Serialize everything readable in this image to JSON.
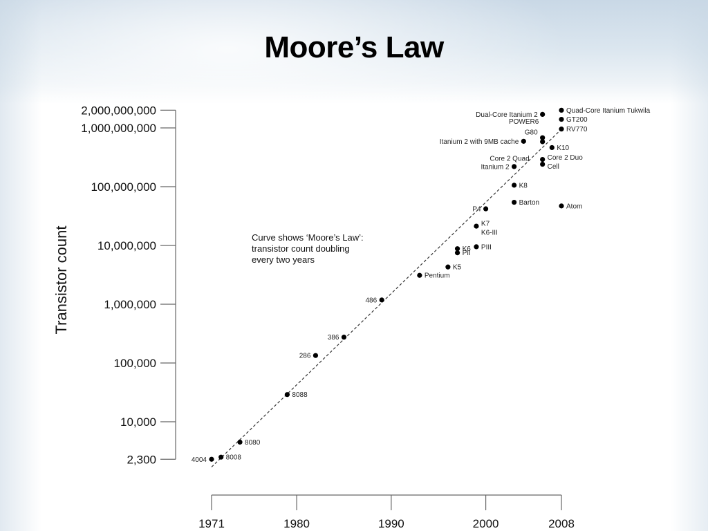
{
  "slide": {
    "title": "Moore’s Law"
  },
  "chart_data": {
    "type": "scatter",
    "ylabel": "Transistor count",
    "xlabel": "",
    "y_scale": "log",
    "x_ticks": [
      1971,
      1980,
      1990,
      2000,
      2008
    ],
    "x_tick_labels": [
      "1971",
      "1980",
      "1990",
      "2000",
      "2008"
    ],
    "y_ticks": [
      2300,
      10000,
      100000,
      1000000,
      10000000,
      100000000,
      1000000000,
      2000000000
    ],
    "y_tick_labels": [
      "2,300",
      "10,000",
      "100,000",
      "1,000,000",
      "10,000,000",
      "100,000,000",
      "1,000,000,000",
      "2,000,000,000"
    ],
    "xlim": [
      1971,
      2008
    ],
    "ylim": [
      2300,
      2000000000
    ],
    "annotation": [
      "Curve shows ‘Moore’s Law’:",
      "transistor count doubling",
      "every two years"
    ],
    "trend_line": {
      "description": "doubling every two years",
      "from": [
        1971,
        1700
      ],
      "to": [
        2008,
        950000000
      ]
    },
    "points": [
      {
        "label": "4004",
        "x": 1971,
        "y": 2300,
        "side": "left"
      },
      {
        "label": "8008",
        "x": 1972,
        "y": 2500,
        "side": "right"
      },
      {
        "label": "8080",
        "x": 1974,
        "y": 4500,
        "side": "right"
      },
      {
        "label": "8088",
        "x": 1979,
        "y": 29000,
        "side": "right"
      },
      {
        "label": "286",
        "x": 1982,
        "y": 134000,
        "side": "left"
      },
      {
        "label": "386",
        "x": 1985,
        "y": 275000,
        "side": "left"
      },
      {
        "label": "486",
        "x": 1989,
        "y": 1180000,
        "side": "left"
      },
      {
        "label": "Pentium",
        "x": 1993,
        "y": 3100000,
        "side": "right"
      },
      {
        "label": "K5",
        "x": 1996,
        "y": 4300000,
        "side": "right"
      },
      {
        "label": "K6",
        "x": 1997,
        "y": 8800000,
        "side": "right"
      },
      {
        "label": "PII",
        "x": 1997,
        "y": 7500000,
        "side": "right"
      },
      {
        "label": "PIII",
        "x": 1999,
        "y": 9500000,
        "side": "right"
      },
      {
        "label": "K6-III",
        "x": 1999,
        "y": 21300000,
        "side": "right",
        "dy": 9
      },
      {
        "label": "K7",
        "x": 1999,
        "y": 22000000,
        "side": "right",
        "dy": -3,
        "no_dot": true
      },
      {
        "label": "P4",
        "x": 2000,
        "y": 42000000,
        "side": "left"
      },
      {
        "label": "Barton",
        "x": 2003,
        "y": 54300000,
        "side": "right"
      },
      {
        "label": "Atom",
        "x": 2008,
        "y": 47000000,
        "side": "right"
      },
      {
        "label": "K8",
        "x": 2003,
        "y": 105900000,
        "side": "right"
      },
      {
        "label": "Itanium 2",
        "x": 2003,
        "y": 220000000,
        "side": "left"
      },
      {
        "label": "Cell",
        "x": 2006,
        "y": 241000000,
        "side": "right",
        "dy": 3
      },
      {
        "label": "Core 2 Duo",
        "x": 2006,
        "y": 291000000,
        "side": "right",
        "dy": -3
      },
      {
        "label": "Core 2 Quad",
        "x": 2006,
        "y": 582000000,
        "side": "left",
        "dx": -12,
        "dy": 24
      },
      {
        "label": "K10",
        "x": 2007,
        "y": 463000000,
        "side": "right"
      },
      {
        "label": "G80",
        "x": 2006,
        "y": 681000000,
        "side": "left",
        "dy": -8
      },
      {
        "label": "Itanium 2 with 9MB cache",
        "x": 2004,
        "y": 592000000,
        "side": "left"
      },
      {
        "label": "POWER6",
        "x": 2007,
        "y": 789000000,
        "side": "left",
        "dx": -12,
        "dy": -18,
        "no_dot": true
      },
      {
        "label": "Dual-Core Itanium 2",
        "x": 2006,
        "y": 1700000000,
        "side": "left"
      },
      {
        "label": "RV770",
        "x": 2008,
        "y": 956000000,
        "side": "right"
      },
      {
        "label": "GT200",
        "x": 2008,
        "y": 1400000000,
        "side": "right"
      },
      {
        "label": "Quad-Core Itanium Tukwila",
        "x": 2008,
        "y": 2000000000,
        "side": "right"
      }
    ],
    "grid": false,
    "legend": "none"
  }
}
